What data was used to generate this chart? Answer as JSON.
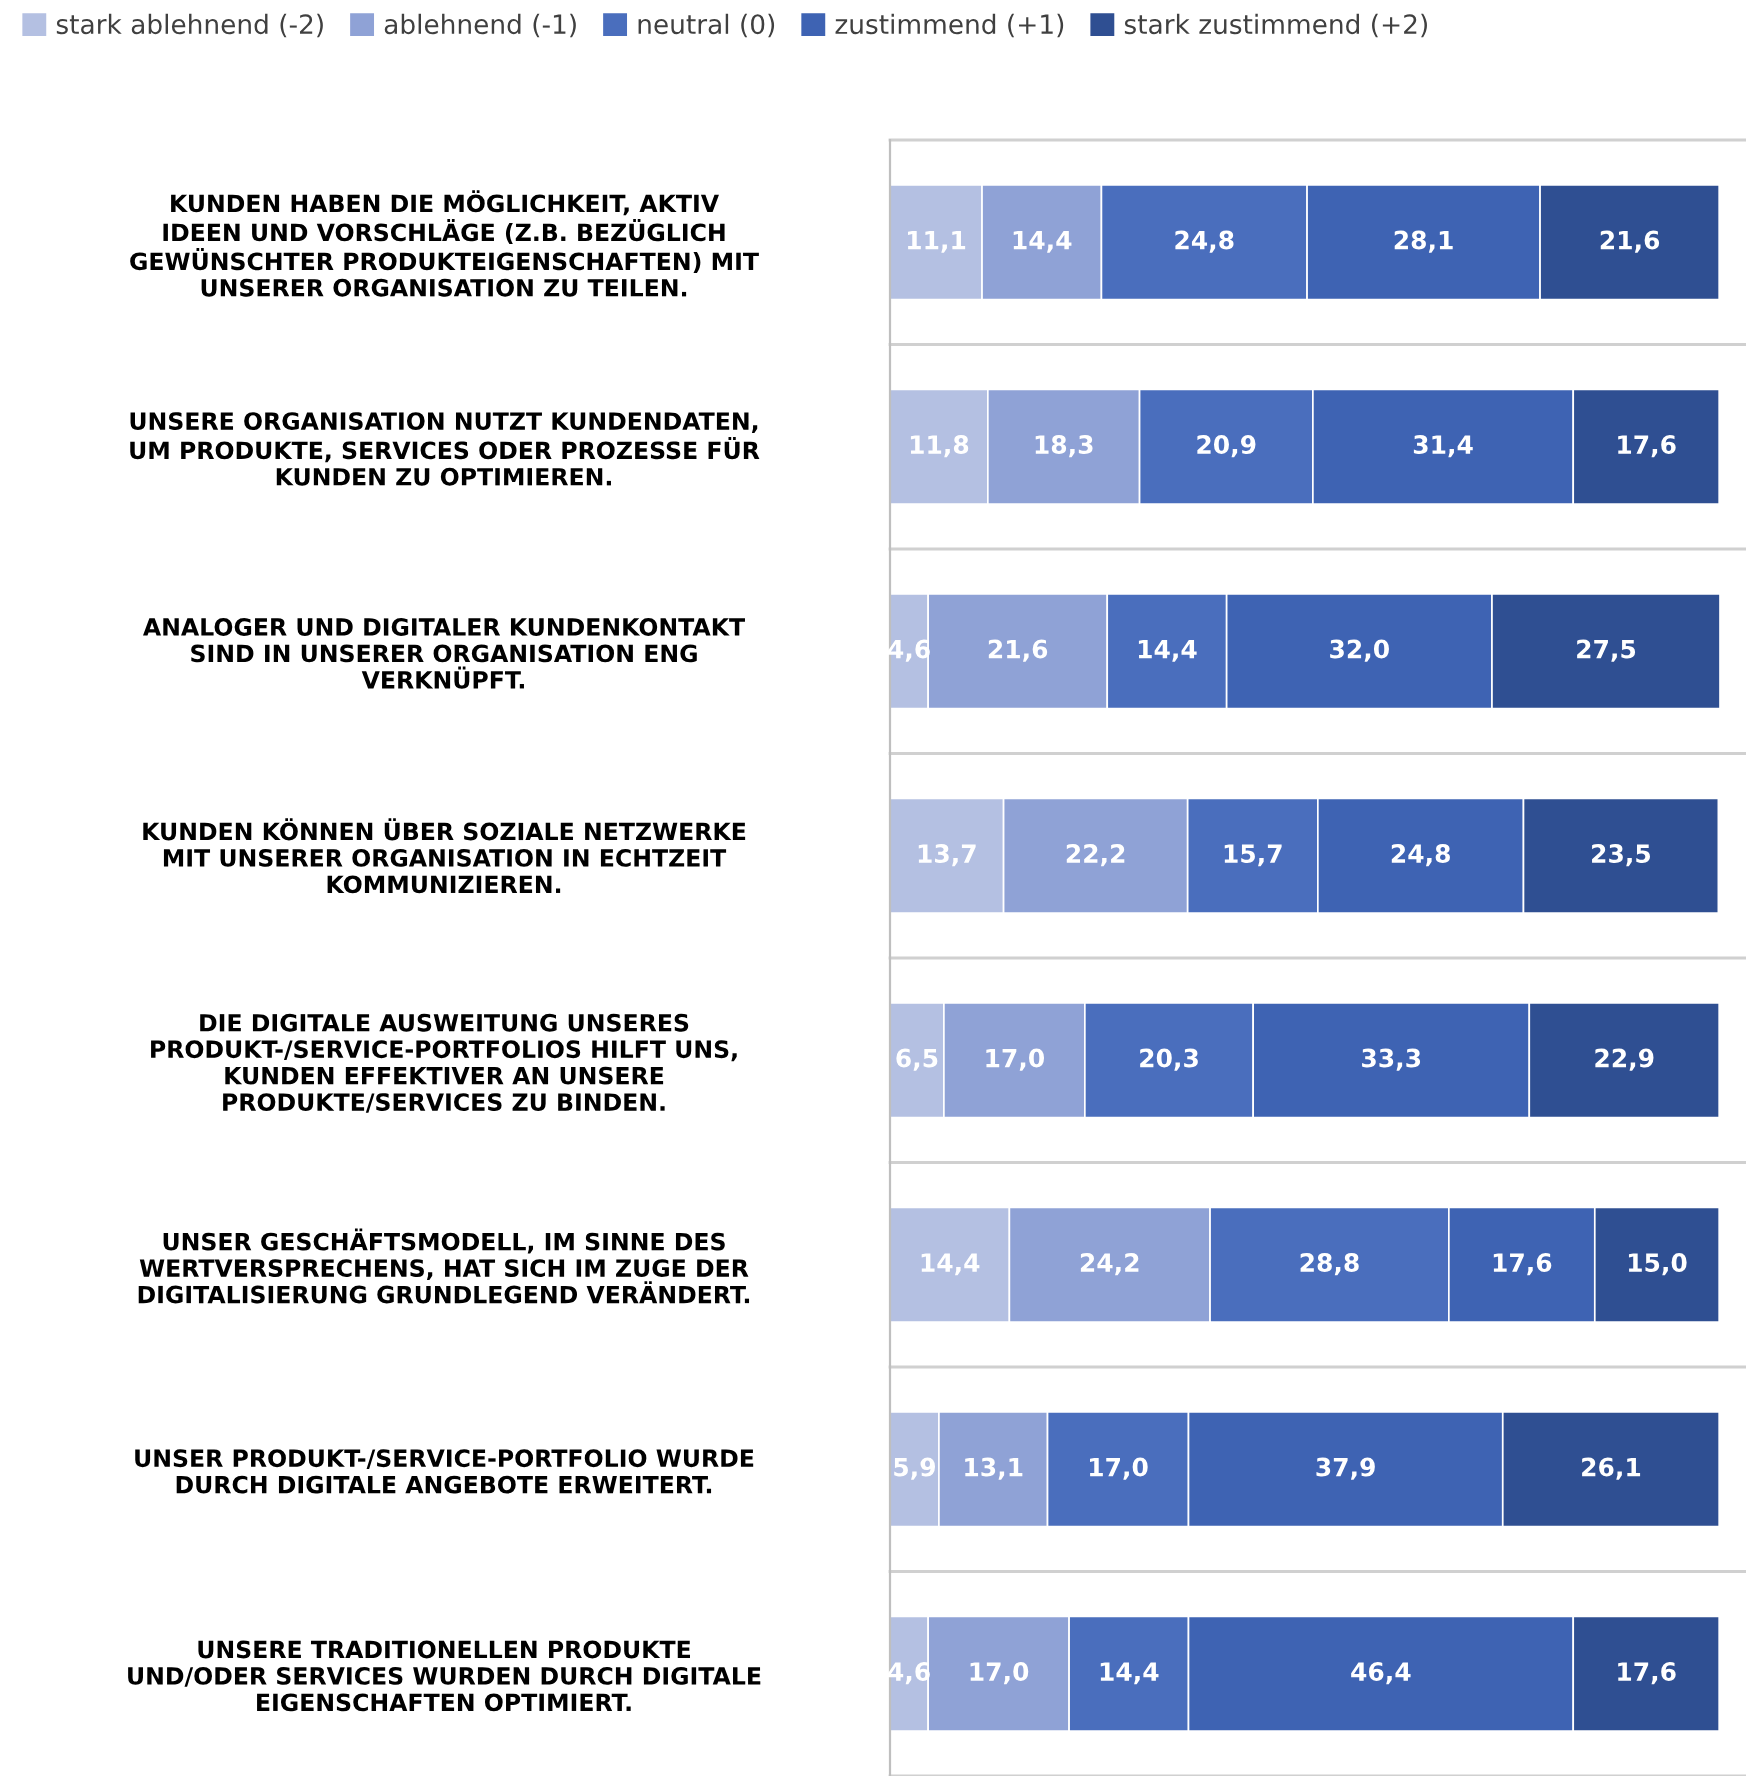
{
  "chart_data": {
    "type": "bar",
    "orientation": "horizontal",
    "stacked": true,
    "grid": "y",
    "legend": "top",
    "categories": [
      "KUNDEN HABEN DIE MÖGLICHKEIT, AKTIV\nIDEEN UND VORSCHLÄGE (Z.B. BEZÜGLICH\nGEWÜNSCHTER PRODUKTEIGENSCHAFTEN) MIT\nUNSERER ORGANISATION ZU TEILEN.",
      "UNSERE ORGANISATION NUTZT KUNDENDATEN,\nUM PRODUKTE, SERVICES ODER PROZESSE FÜR\nKUNDEN ZU OPTIMIEREN.",
      "ANALOGER UND DIGITALER KUNDENKONTAKT\nSIND IN UNSERER ORGANISATION ENG\nVERKNÜPFT.",
      "KUNDEN KÖNNEN ÜBER SOZIALE NETZWERKE\nMIT UNSERER ORGANISATION IN ECHTZEIT\nKOMMUNIZIEREN.",
      "DIE DIGITALE AUSWEITUNG UNSERES\nPRODUKT-/SERVICE-PORTFOLIOS HILFT UNS,\nKUNDEN EFFEKTIVER AN UNSERE\nPRODUKTE/SERVICES ZU BINDEN.",
      "UNSER GESCHÄFTSMODELL, IM SINNE DES\nWERTVERSPRECHENS, HAT SICH IM ZUGE DER\nDIGITALISIERUNG GRUNDLEGEND VERÄNDERT.",
      "UNSER PRODUKT-/SERVICE-PORTFOLIO WURDE\nDURCH DIGITALE ANGEBOTE ERWEITERT.",
      "UNSERE TRADITIONELLEN PRODUKTE\nUND/ODER SERVICES WURDEN DURCH DIGITALE\nEIGENSCHAFTEN OPTIMIERT."
    ],
    "series": [
      {
        "name": "stark ablehnend (-2)",
        "color": "#b4c0e2",
        "values": [
          11.1,
          11.8,
          4.6,
          13.7,
          6.5,
          14.4,
          5.9,
          4.6
        ],
        "value_labels": [
          "11,1",
          "11,8",
          "4,6",
          "13,7",
          "6,5",
          "14,4",
          "5,9",
          "4,6"
        ]
      },
      {
        "name": "ablehnend (-1)",
        "color": "#8fa2d6",
        "values": [
          14.4,
          18.3,
          21.6,
          22.2,
          17.0,
          24.2,
          13.1,
          17.0
        ],
        "value_labels": [
          "14,4",
          "18,3",
          "21,6",
          "22,2",
          "17,0",
          "24,2",
          "13,1",
          "17,0"
        ]
      },
      {
        "name": "neutral (0)",
        "color": "#4a6ebd",
        "values": [
          24.8,
          20.9,
          14.4,
          15.7,
          20.3,
          28.8,
          17.0,
          14.4
        ],
        "value_labels": [
          "24,8",
          "20,9",
          "14,4",
          "15,7",
          "20,3",
          "28,8",
          "17,0",
          "14,4"
        ]
      },
      {
        "name": "zustimmend (+1)",
        "color": "#3e63b3",
        "values": [
          28.1,
          31.4,
          32.0,
          24.8,
          33.3,
          17.6,
          37.9,
          46.4
        ],
        "value_labels": [
          "28,1",
          "31,4",
          "32,0",
          "24,8",
          "33,3",
          "17,6",
          "37,9",
          "46,4"
        ]
      },
      {
        "name": "stark zustimmend (+2)",
        "color": "#2f4f92",
        "values": [
          21.6,
          17.6,
          27.5,
          23.5,
          22.9,
          15.0,
          26.1,
          17.6
        ],
        "value_labels": [
          "21,6",
          "17,6",
          "27,5",
          "23,5",
          "22,9",
          "15,0",
          "26,1",
          "17,6"
        ]
      }
    ]
  }
}
